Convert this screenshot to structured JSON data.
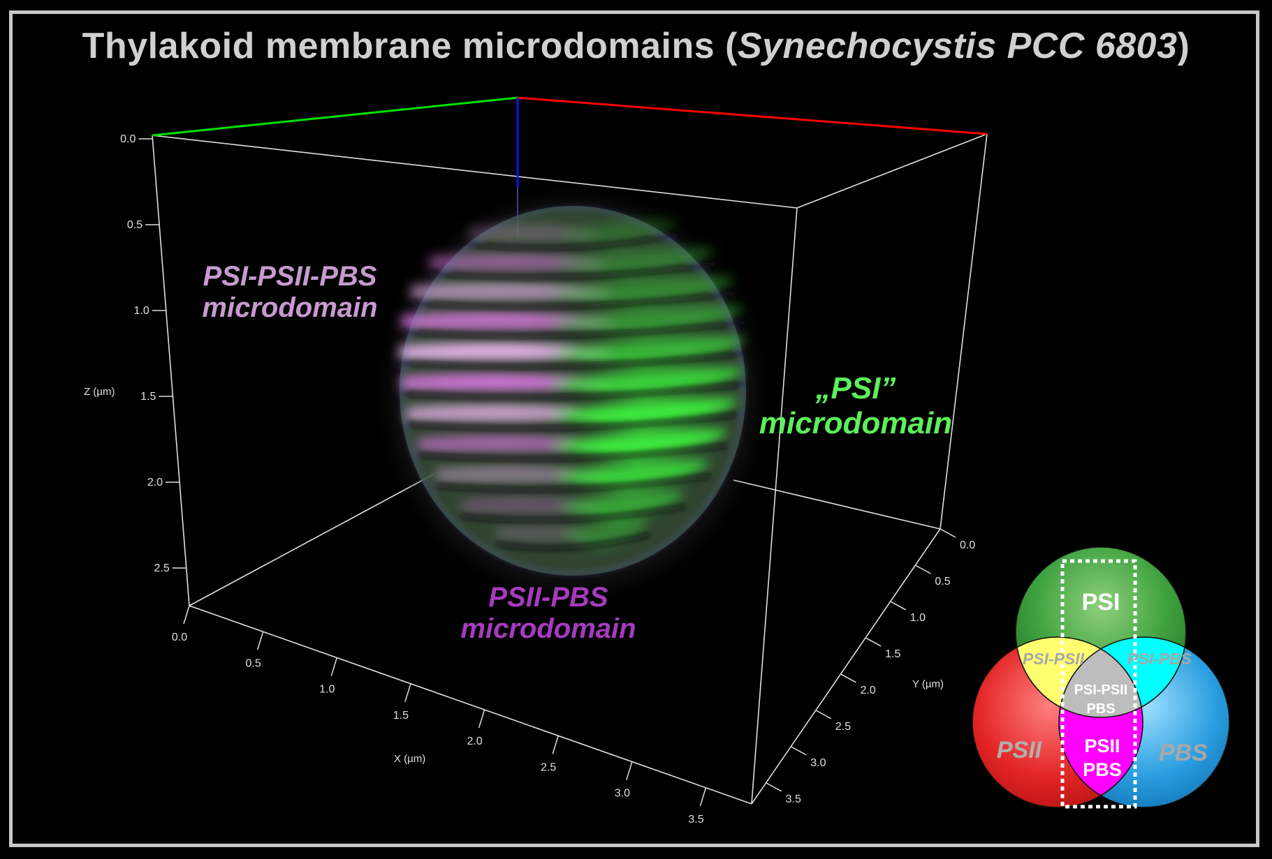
{
  "title": {
    "prefix": "Thylakoid membrane microdomains (",
    "organism": "Synechocystis PCC 6803",
    "suffix": ")"
  },
  "axes": {
    "z_label": "Z (µm)",
    "z_ticks": [
      "0.0",
      "0.5",
      "1.0",
      "1.5",
      "2.0",
      "2.5"
    ],
    "x_label": "X (µm)",
    "x_ticks": [
      "0.0",
      "0.5",
      "1.0",
      "1.5",
      "2.0",
      "2.5",
      "3.0",
      "3.5"
    ],
    "y_label": "Y (µm)",
    "y_ticks": [
      "0.0",
      "0.5",
      "1.0",
      "1.5",
      "2.0",
      "2.5",
      "3.0",
      "3.5"
    ],
    "colors": {
      "x_axis": "#ff0000",
      "y_axis": "#00e000",
      "z_axis": "#0000ff",
      "box": "#e0e0e0"
    }
  },
  "labels": {
    "psi_psii_pbs": {
      "line1": "PSI-PSII-PBS",
      "line2": "microdomain",
      "color": "#c89ad0"
    },
    "psi": {
      "line1": "„PSI”",
      "line2": "microdomain",
      "color": "#5cf05c"
    },
    "psii_pbs": {
      "line1": "PSII-PBS",
      "line2": "microdomain",
      "color": "#a63bbf"
    }
  },
  "venn": {
    "psi": "PSI",
    "psii": "PSII",
    "pbs": "PBS",
    "psi_psii": "PSI-PSII",
    "psi_pbs": "PSI-PBS",
    "center_line1": "PSI-PSII",
    "center_line2": "PBS",
    "psii_pbs_line1": "PSII",
    "psii_pbs_line2": "PBS",
    "colors": {
      "psi": "#3a9a3a",
      "psii": "#e02020",
      "pbs": "#1a8ecf",
      "psi_psii": "#ffff66",
      "psi_pbs": "#00ffff",
      "psii_pbs": "#ff00ff",
      "center": "#bdbdbd"
    }
  }
}
